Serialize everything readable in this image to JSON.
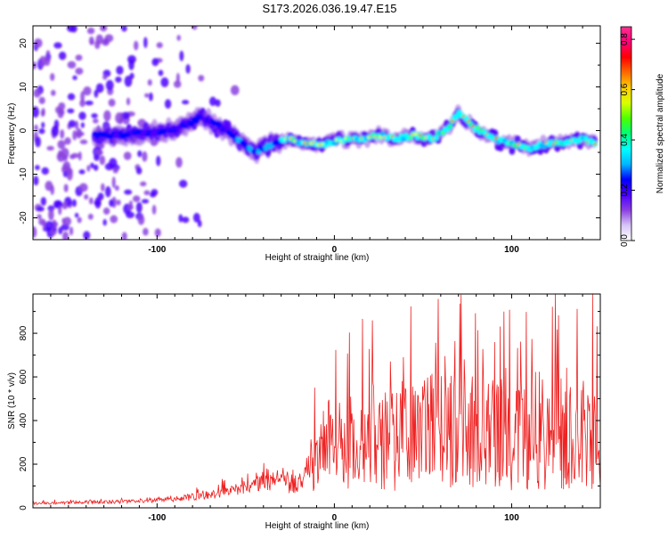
{
  "title": "S173.2026.036.19.47.E15",
  "chart_data": [
    {
      "type": "heatmap",
      "name": "spectrogram",
      "xlabel": "Height of straight line (km)",
      "ylabel": "Frequency (Hz)",
      "xlim": [
        -170,
        150
      ],
      "ylim": [
        -25,
        24
      ],
      "xticks": [
        -100,
        0,
        100
      ],
      "yticks": [
        -20,
        -10,
        0,
        10,
        20
      ],
      "ridge": {
        "x": [
          -135,
          -120,
          -105,
          -95,
          -85,
          -75,
          -65,
          -55,
          -45,
          -35,
          -25,
          -15,
          -5,
          5,
          15,
          25,
          35,
          45,
          55,
          65,
          70,
          78,
          90,
          100,
          110,
          120,
          130,
          140,
          148
        ],
        "y": [
          -1,
          -1,
          -0.5,
          0,
          1,
          3,
          1,
          -2,
          -5,
          -3,
          -2,
          -3,
          -3,
          -2,
          -2,
          -1,
          -2,
          -1,
          -2,
          1,
          4,
          1,
          -2,
          -3,
          -4,
          -3,
          -3,
          -2,
          -3
        ]
      },
      "colorbar": {
        "label": "Normalized spectral amplitude",
        "range": [
          0,
          0.85
        ],
        "ticks": [
          "0.0",
          "0.2",
          "0.4",
          "0.6",
          "0.8"
        ],
        "colors": [
          "#ffffff",
          "#d7c5f7",
          "#8a3fe0",
          "#4b00ff",
          "#0000ff",
          "#00b7ff",
          "#00ffff",
          "#00ff7a",
          "#4cff00",
          "#d8ff00",
          "#ffd000",
          "#ff6a00",
          "#ff0000",
          "#ff007a",
          "#ff2f8f"
        ]
      }
    },
    {
      "type": "line",
      "name": "snr",
      "xlabel": "Height of straight line (km)",
      "ylabel": "SNR (10 * v/v)",
      "xlim": [
        -170,
        150
      ],
      "ylim": [
        0,
        980
      ],
      "xticks": [
        -100,
        0,
        100
      ],
      "yticks": [
        0,
        200,
        400,
        600,
        800
      ],
      "color": "#ee2222",
      "envelope": {
        "x": [
          -170,
          -140,
          -110,
          -90,
          -75,
          -60,
          -50,
          -40,
          -30,
          -20,
          -15,
          -12,
          -8,
          -3,
          0,
          10,
          20,
          30,
          50,
          70,
          90,
          110,
          130,
          150
        ],
        "mean": [
          20,
          25,
          30,
          40,
          55,
          75,
          95,
          130,
          120,
          110,
          150,
          220,
          200,
          240,
          280,
          300,
          320,
          330,
          340,
          350,
          340,
          330,
          350,
          340
        ],
        "amp": [
          10,
          12,
          15,
          20,
          30,
          45,
          60,
          90,
          90,
          80,
          160,
          260,
          220,
          300,
          320,
          360,
          420,
          430,
          440,
          450,
          430,
          420,
          460,
          420
        ]
      }
    }
  ]
}
